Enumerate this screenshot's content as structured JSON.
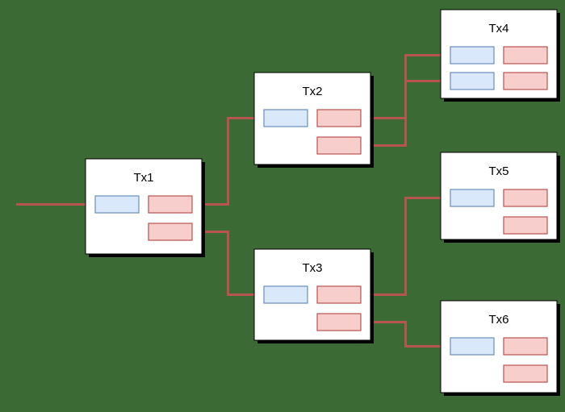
{
  "diagram": {
    "colors": {
      "background": "#3c6a34",
      "box_fill": "#ffffff",
      "box_border": "#000000",
      "box_shadow": "#000000",
      "input_fill": "#dae8fc",
      "input_border": "#6c8ebf",
      "output_fill": "#f8cecc",
      "output_border": "#b85450",
      "edge": "#b85450",
      "label": "#000000"
    },
    "transactions": [
      {
        "id": "tx1",
        "label": "Tx1",
        "inputs": 1,
        "outputs": 2
      },
      {
        "id": "tx2",
        "label": "Tx2",
        "inputs": 1,
        "outputs": 2
      },
      {
        "id": "tx3",
        "label": "Tx3",
        "inputs": 1,
        "outputs": 2
      },
      {
        "id": "tx4",
        "label": "Tx4",
        "inputs": 2,
        "outputs": 2
      },
      {
        "id": "tx5",
        "label": "Tx5",
        "inputs": 1,
        "outputs": 2
      },
      {
        "id": "tx6",
        "label": "Tx6",
        "inputs": 1,
        "outputs": 2
      }
    ],
    "edges": [
      {
        "from": "external",
        "to": "tx1.in.0"
      },
      {
        "from": "tx1.out.0",
        "to": "tx2.in.0"
      },
      {
        "from": "tx1.out.1",
        "to": "tx3.in.0"
      },
      {
        "from": "tx2.out.0",
        "to": "tx4.in.0"
      },
      {
        "from": "tx2.out.1",
        "to": "tx4.in.1"
      },
      {
        "from": "tx3.out.0",
        "to": "tx5.in.0"
      },
      {
        "from": "tx3.out.1",
        "to": "tx6.in.0"
      }
    ]
  }
}
